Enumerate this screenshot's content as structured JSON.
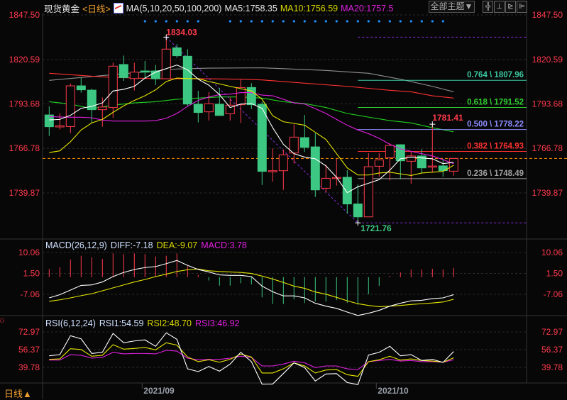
{
  "header": {
    "instrument": "现货黄金",
    "period": "<日线>",
    "ma_label": "MA(5,10,20,50,100,200)",
    "ma5": "MA5:1758.35",
    "ma10": "MA10:1756.59",
    "ma20": "MA20:1757.5",
    "theme_button": "全部主题▼",
    "tool_icons": [
      "grid-icon",
      "zoom-in-icon",
      "zoom-out-icon",
      "exit-icon"
    ],
    "tool_glyphs": [
      "╬",
      "⊥",
      "⊵",
      "⊫"
    ]
  },
  "main_axis": {
    "labels": [
      "1847.50",
      "1820.59",
      "1793.68",
      "1766.78",
      "1739.87"
    ],
    "values": [
      1847.5,
      1820.59,
      1793.68,
      1766.78,
      1739.87
    ]
  },
  "candles": [
    [
      1787.0,
      1792.2,
      1774.3,
      1779.9
    ],
    [
      1780.2,
      1787.9,
      1778.2,
      1780.4
    ],
    [
      1780.0,
      1806.0,
      1776.0,
      1804.6
    ],
    [
      1804.6,
      1809.6,
      1800.5,
      1802.2
    ],
    [
      1802.0,
      1802.9,
      1782.5,
      1790.2
    ],
    [
      1790.2,
      1797.6,
      1779.9,
      1791.8
    ],
    [
      1791.5,
      1818.6,
      1785.3,
      1816.5
    ],
    [
      1817.5,
      1822.9,
      1807.6,
      1809.6
    ],
    [
      1809.0,
      1818.6,
      1801.8,
      1812.9
    ],
    [
      1813.6,
      1819.6,
      1809.0,
      1812.9
    ],
    [
      1813.6,
      1817.2,
      1805.0,
      1808.9
    ],
    [
      1808.9,
      1834.03,
      1808.9,
      1826.8
    ],
    [
      1827.6,
      1829.8,
      1821.5,
      1822.8
    ],
    [
      1822.5,
      1826.8,
      1792.2,
      1793.6
    ],
    [
      1793.5,
      1801.6,
      1782.5,
      1788.5
    ],
    [
      1788.9,
      1800.8,
      1783.6,
      1793.8
    ],
    [
      1793.5,
      1803.3,
      1786.7,
      1786.7
    ],
    [
      1787.7,
      1797.6,
      1783.6,
      1792.9
    ],
    [
      1793.2,
      1808.3,
      1782.2,
      1803.6
    ],
    [
      1803.6,
      1806.2,
      1790.6,
      1793.2
    ],
    [
      1793.5,
      1795.0,
      1744.7,
      1752.9
    ],
    [
      1753.1,
      1766.7,
      1746.7,
      1753.3
    ],
    [
      1753.3,
      1766.1,
      1741.7,
      1762.9
    ],
    [
      1764.0,
      1781.3,
      1757.6,
      1773.6
    ],
    [
      1773.3,
      1787.0,
      1764.6,
      1767.4
    ],
    [
      1767.7,
      1775.9,
      1737.4,
      1741.7
    ],
    [
      1742.7,
      1757.0,
      1740.2,
      1748.7
    ],
    [
      1749.0,
      1760.3,
      1744.3,
      1749.2
    ],
    [
      1749.3,
      1753.6,
      1727.4,
      1733.2
    ],
    [
      1733.2,
      1745.0,
      1721.76,
      1725.4
    ],
    [
      1725.4,
      1763.9,
      1725.4,
      1755.7
    ],
    [
      1756.0,
      1763.9,
      1749.6,
      1759.8
    ],
    [
      1761.1,
      1769.7,
      1747.4,
      1768.6
    ],
    [
      1769.0,
      1769.3,
      1748.1,
      1759.3
    ],
    [
      1759.0,
      1764.9,
      1745.4,
      1762.2
    ],
    [
      1762.2,
      1766.4,
      1751.9,
      1755.0
    ],
    [
      1756.0,
      1781.41,
      1752.5,
      1756.1
    ],
    [
      1756.2,
      1760.4,
      1749.7,
      1753.3
    ],
    [
      1753.0,
      1760.7,
      1750.3,
      1760.7
    ]
  ],
  "moving_averages": {
    "ma5": [
      1784.0,
      1784.3,
      1786.8,
      1791.0,
      1792.2,
      1794.3,
      1801.5,
      1802.5,
      1804.3,
      1809.3,
      1812.9,
      1815.0,
      1817.2,
      1814.3,
      1808.6,
      1805.0,
      1799.3,
      1791.5,
      1793.6,
      1793.9,
      1791.0,
      1779.3,
      1769.3,
      1763.6,
      1761.5,
      1760.5,
      1756.2,
      1749.3,
      1740.0,
      1743.6,
      1745.7,
      1747.9,
      1753.6,
      1760.5,
      1761.5,
      1761.0,
      1760.5,
      1757.6,
      1758.35
    ],
    "ma10": [
      1764.3,
      1765.3,
      1770.8,
      1777.9,
      1782.2,
      1784.3,
      1788.6,
      1792.5,
      1795.8,
      1798.6,
      1802.2,
      1807.2,
      1809.3,
      1809.0,
      1809.0,
      1807.2,
      1805.8,
      1804.3,
      1802.9,
      1801.5,
      1796.5,
      1786.5,
      1782.9,
      1781.9,
      1780.8,
      1776.5,
      1772.2,
      1763.6,
      1755.0,
      1750.7,
      1750.7,
      1751.9,
      1752.4,
      1751.4,
      1750.4,
      1751.9,
      1752.4,
      1752.9,
      1756.59
    ],
    "ma20": [
      1786.0,
      1785.8,
      1785.6,
      1785.6,
      1785.3,
      1783.9,
      1783.3,
      1783.3,
      1783.3,
      1783.3,
      1783.6,
      1785.0,
      1787.9,
      1792.2,
      1795.8,
      1797.9,
      1799.3,
      1799.6,
      1800.5,
      1800.5,
      1799.0,
      1798.6,
      1796.5,
      1794.3,
      1793.6,
      1790.8,
      1787.9,
      1784.3,
      1780.8,
      1777.9,
      1775.7,
      1772.9,
      1769.3,
      1766.5,
      1765.0,
      1763.6,
      1762.2,
      1760.0,
      1757.5
    ],
    "ma50": [
      [
        0,
        1795.0
      ],
      [
        2,
        1793.6
      ],
      [
        4,
        1790.8
      ],
      [
        6,
        1792.9
      ],
      [
        8,
        1794.3
      ],
      [
        10,
        1795.0
      ],
      [
        12,
        1796.5
      ],
      [
        14,
        1797.2
      ],
      [
        16,
        1797.9
      ],
      [
        18,
        1797.9
      ],
      [
        20,
        1797.2
      ],
      [
        22,
        1795.0
      ],
      [
        24,
        1793.9
      ],
      [
        26,
        1791.5
      ],
      [
        28,
        1787.9
      ],
      [
        30,
        1785.7
      ],
      [
        32,
        1783.6
      ],
      [
        34,
        1782.2
      ],
      [
        36,
        1779.3
      ],
      [
        38,
        1776.8
      ]
    ],
    "ma100": [
      [
        0,
        1812.2
      ],
      [
        5,
        1810.0
      ],
      [
        10,
        1808.9
      ],
      [
        15,
        1808.9
      ],
      [
        18,
        1808.6
      ],
      [
        20,
        1808.2
      ],
      [
        24,
        1806.2
      ],
      [
        28,
        1804.3
      ],
      [
        32,
        1801.9
      ],
      [
        34,
        1801.0
      ],
      [
        36,
        1798.6
      ],
      [
        38,
        1797.2
      ]
    ],
    "ma200": [
      [
        0,
        1807.9
      ],
      [
        5,
        1810.8
      ],
      [
        10,
        1813.6
      ],
      [
        12,
        1814.8
      ],
      [
        15,
        1815.3
      ],
      [
        20,
        1815.5
      ],
      [
        26,
        1813.9
      ],
      [
        30,
        1812.2
      ],
      [
        33,
        1808.6
      ],
      [
        36,
        1804.3
      ],
      [
        38,
        1801.0
      ]
    ]
  },
  "colors": {
    "up": "#ff3a4c",
    "down": "#3cc882",
    "ma5": "#ffffff",
    "ma10": "#e6e600",
    "ma20": "#e020e0",
    "ma50": "#20d020",
    "ma100": "#ff3030",
    "ma200": "#909090",
    "axis_label": "#ff3a4c",
    "fib_line": "#8a2be2",
    "current_price": "#ff8c00",
    "signal_dot": "#1e90ff"
  },
  "annotations": {
    "high": {
      "label": "1834.03",
      "value": 1834.03,
      "candle": 11
    },
    "low": {
      "label": "1721.76",
      "value": 1721.76,
      "candle": 29
    },
    "recent_high": {
      "label": "1781.41",
      "value": 1781.41,
      "candle": 36
    }
  },
  "current_price": 1760.7,
  "signal_dot_candles": [
    9,
    10,
    11,
    12,
    13,
    14,
    17,
    18,
    19,
    20,
    21,
    22,
    23,
    24,
    25,
    26,
    27,
    28,
    29,
    30,
    31,
    32,
    33,
    34,
    35,
    36,
    37
  ],
  "fibonacci": [
    {
      "label": "0.764 \\ 1807.96",
      "value": 1807.96,
      "color": "#3cc8a0"
    },
    {
      "label": "0.618 \\ 1791.52",
      "value": 1791.52,
      "color": "#30d030"
    },
    {
      "label": "0.500 \\ 1778.22",
      "value": 1778.22,
      "color": "#8c8cff"
    },
    {
      "label": "0.382 \\ 1764.93",
      "value": 1764.93,
      "color": "#ff3030"
    },
    {
      "label": "0.236 \\ 1748.49",
      "value": 1748.49,
      "color": "#a0a0a0"
    }
  ],
  "macd": {
    "title": "MACD(26,12,9)",
    "diff_label": "DIFF:-7.18",
    "dea_label": "DEA:-9.07",
    "macd_label": "MACD:3.78",
    "axis_labels": [
      "10.06",
      "1.50",
      "-7.06"
    ],
    "axis_values": [
      10.06,
      1.5,
      -7.06
    ],
    "hist": [
      3.3,
      4.0,
      7.2,
      8.7,
      8.1,
      7.4,
      9.7,
      9.4,
      9.7,
      9.4,
      8.4,
      8.7,
      9.7,
      4.5,
      0.9,
      -1.4,
      -3.5,
      -3.5,
      -2.5,
      -3.0,
      -8.3,
      -11.0,
      -11.0,
      -9.1,
      -10.6,
      -10.0,
      -10.0,
      -9.4,
      -10.5,
      -11.3,
      -7.0,
      -3.6,
      0.5,
      1.9,
      3.1,
      3.1,
      3.4,
      3.1,
      3.78
    ],
    "diff": [
      -8.5,
      -7.2,
      -5.3,
      -3.4,
      -3.2,
      -2.0,
      0.2,
      1.9,
      3.1,
      3.9,
      4.3,
      5.5,
      6.8,
      4.8,
      3.1,
      2.1,
      0.9,
      0.7,
      0.7,
      0.2,
      -3.7,
      -6.0,
      -7.7,
      -7.7,
      -8.5,
      -10.7,
      -11.9,
      -12.8,
      -14.3,
      -15.7,
      -14.8,
      -13.6,
      -11.9,
      -10.7,
      -9.7,
      -9.5,
      -8.8,
      -8.5,
      -7.18
    ],
    "dea": [
      -9.9,
      -9.3,
      -8.5,
      -7.6,
      -6.8,
      -5.6,
      -4.4,
      -3.2,
      -2.0,
      -1.0,
      0.2,
      1.2,
      2.3,
      3.0,
      3.3,
      2.6,
      2.3,
      2.1,
      1.9,
      1.5,
      0.4,
      -0.8,
      -2.2,
      -3.7,
      -4.6,
      -6.1,
      -7.0,
      -8.3,
      -9.7,
      -10.9,
      -11.6,
      -12.1,
      -11.9,
      -11.6,
      -11.2,
      -10.9,
      -10.6,
      -10.2,
      -9.07
    ]
  },
  "rsi": {
    "title": "RSI(6,12,24)",
    "rsi1_label": "RSI1:54.59",
    "rsi2_label": "RSI2:48.70",
    "rsi3_label": "RSI3:46.92",
    "axis_labels": [
      "72.97",
      "56.37",
      "39.78"
    ],
    "axis_values": [
      72.97,
      56.37,
      39.78
    ],
    "rsi1": [
      50.6,
      51.7,
      69.4,
      66.5,
      52.8,
      53.9,
      71.6,
      62.8,
      64.5,
      65.5,
      59.5,
      72.1,
      66.1,
      38.4,
      35.8,
      40.6,
      36.2,
      42.9,
      53.9,
      45.1,
      24.0,
      24.2,
      34.0,
      44.0,
      39.6,
      27.0,
      33.6,
      33.9,
      25.6,
      23.6,
      51.3,
      53.9,
      59.5,
      50.6,
      51.7,
      46.2,
      47.3,
      44.4,
      54.59
    ],
    "rsi2": [
      47.3,
      47.7,
      57.2,
      56.5,
      50.2,
      51.1,
      61.0,
      56.8,
      57.5,
      58.4,
      56.2,
      62.8,
      60.6,
      49.5,
      45.1,
      46.9,
      44.6,
      47.3,
      52.2,
      49.5,
      34.5,
      34.5,
      38.4,
      44.0,
      41.1,
      34.5,
      37.3,
      37.7,
      32.9,
      31.4,
      45.1,
      46.9,
      50.2,
      46.6,
      47.7,
      46.2,
      45.7,
      44.6,
      48.7
    ],
    "rsi3": [
      46.6,
      46.6,
      51.7,
      51.1,
      48.4,
      49.1,
      53.9,
      52.4,
      52.8,
      52.8,
      52.4,
      55.7,
      55.0,
      48.4,
      46.9,
      47.3,
      47.3,
      48.4,
      50.2,
      49.1,
      41.1,
      41.1,
      42.9,
      45.5,
      44.0,
      39.6,
      41.1,
      41.1,
      38.4,
      37.7,
      45.1,
      46.2,
      47.3,
      45.7,
      46.2,
      45.1,
      45.1,
      44.6,
      46.92
    ]
  },
  "time_axis": {
    "labels": [
      "2021/09",
      "2021/10"
    ],
    "candles": [
      9,
      31
    ]
  },
  "timeframe": "日线",
  "timeframe_arrow": "▲"
}
